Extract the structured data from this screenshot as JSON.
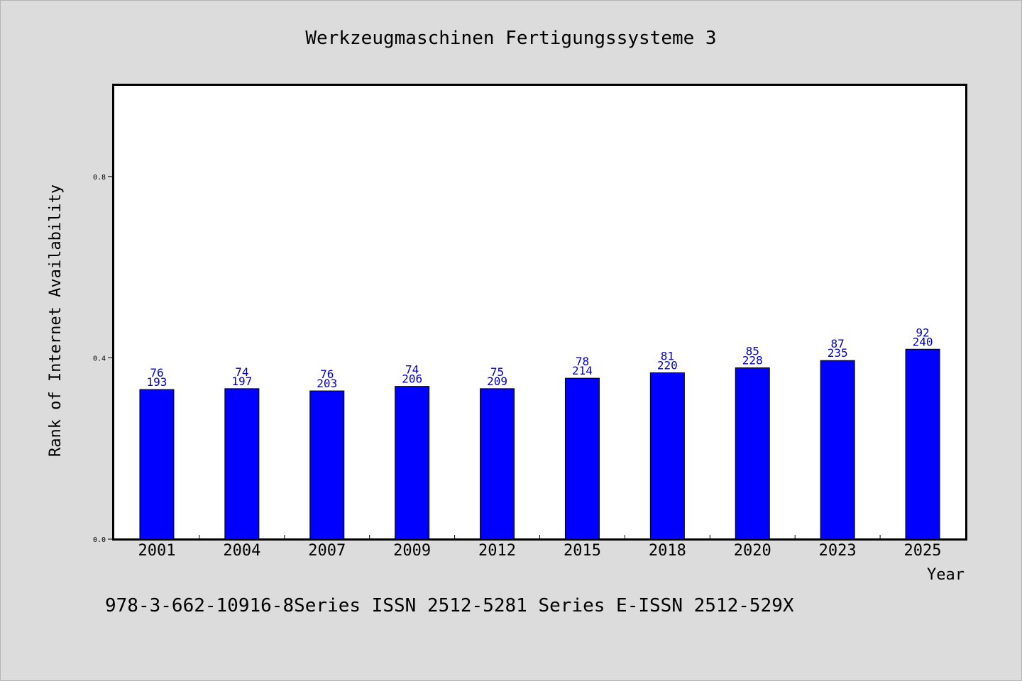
{
  "chart_data": {
    "type": "bar",
    "title": "Werkzeugmaschinen Fertigungssysteme 3",
    "xlabel": "Year",
    "ylabel": "Rank of Internet Availability",
    "footnote": "978-3-662-10916-8Series ISSN 2512-5281 Series E-ISSN 2512-529X",
    "categories": [
      "2001",
      "2004",
      "2007",
      "2009",
      "2012",
      "2015",
      "2018",
      "2020",
      "2023",
      "2025"
    ],
    "values": [
      0.33,
      0.332,
      0.327,
      0.337,
      0.332,
      0.355,
      0.367,
      0.378,
      0.394,
      0.419
    ],
    "data_labels_upper": [
      "76",
      "74",
      "76",
      "74",
      "75",
      "78",
      "81",
      "85",
      "87",
      "92"
    ],
    "data_labels_lower": [
      "193",
      "197",
      "203",
      "206",
      "209",
      "214",
      "220",
      "228",
      "235",
      "240"
    ],
    "yticks": [
      "0.0",
      "0.4",
      "0.8"
    ],
    "ytick_values": [
      0.0,
      0.4,
      0.8
    ],
    "ylim": [
      0,
      1.0
    ],
    "grid": false,
    "colors": {
      "bar": "#0000ff",
      "data_label": "#0000cc",
      "background": "#dcdcdc",
      "plot": "#ffffff"
    }
  }
}
